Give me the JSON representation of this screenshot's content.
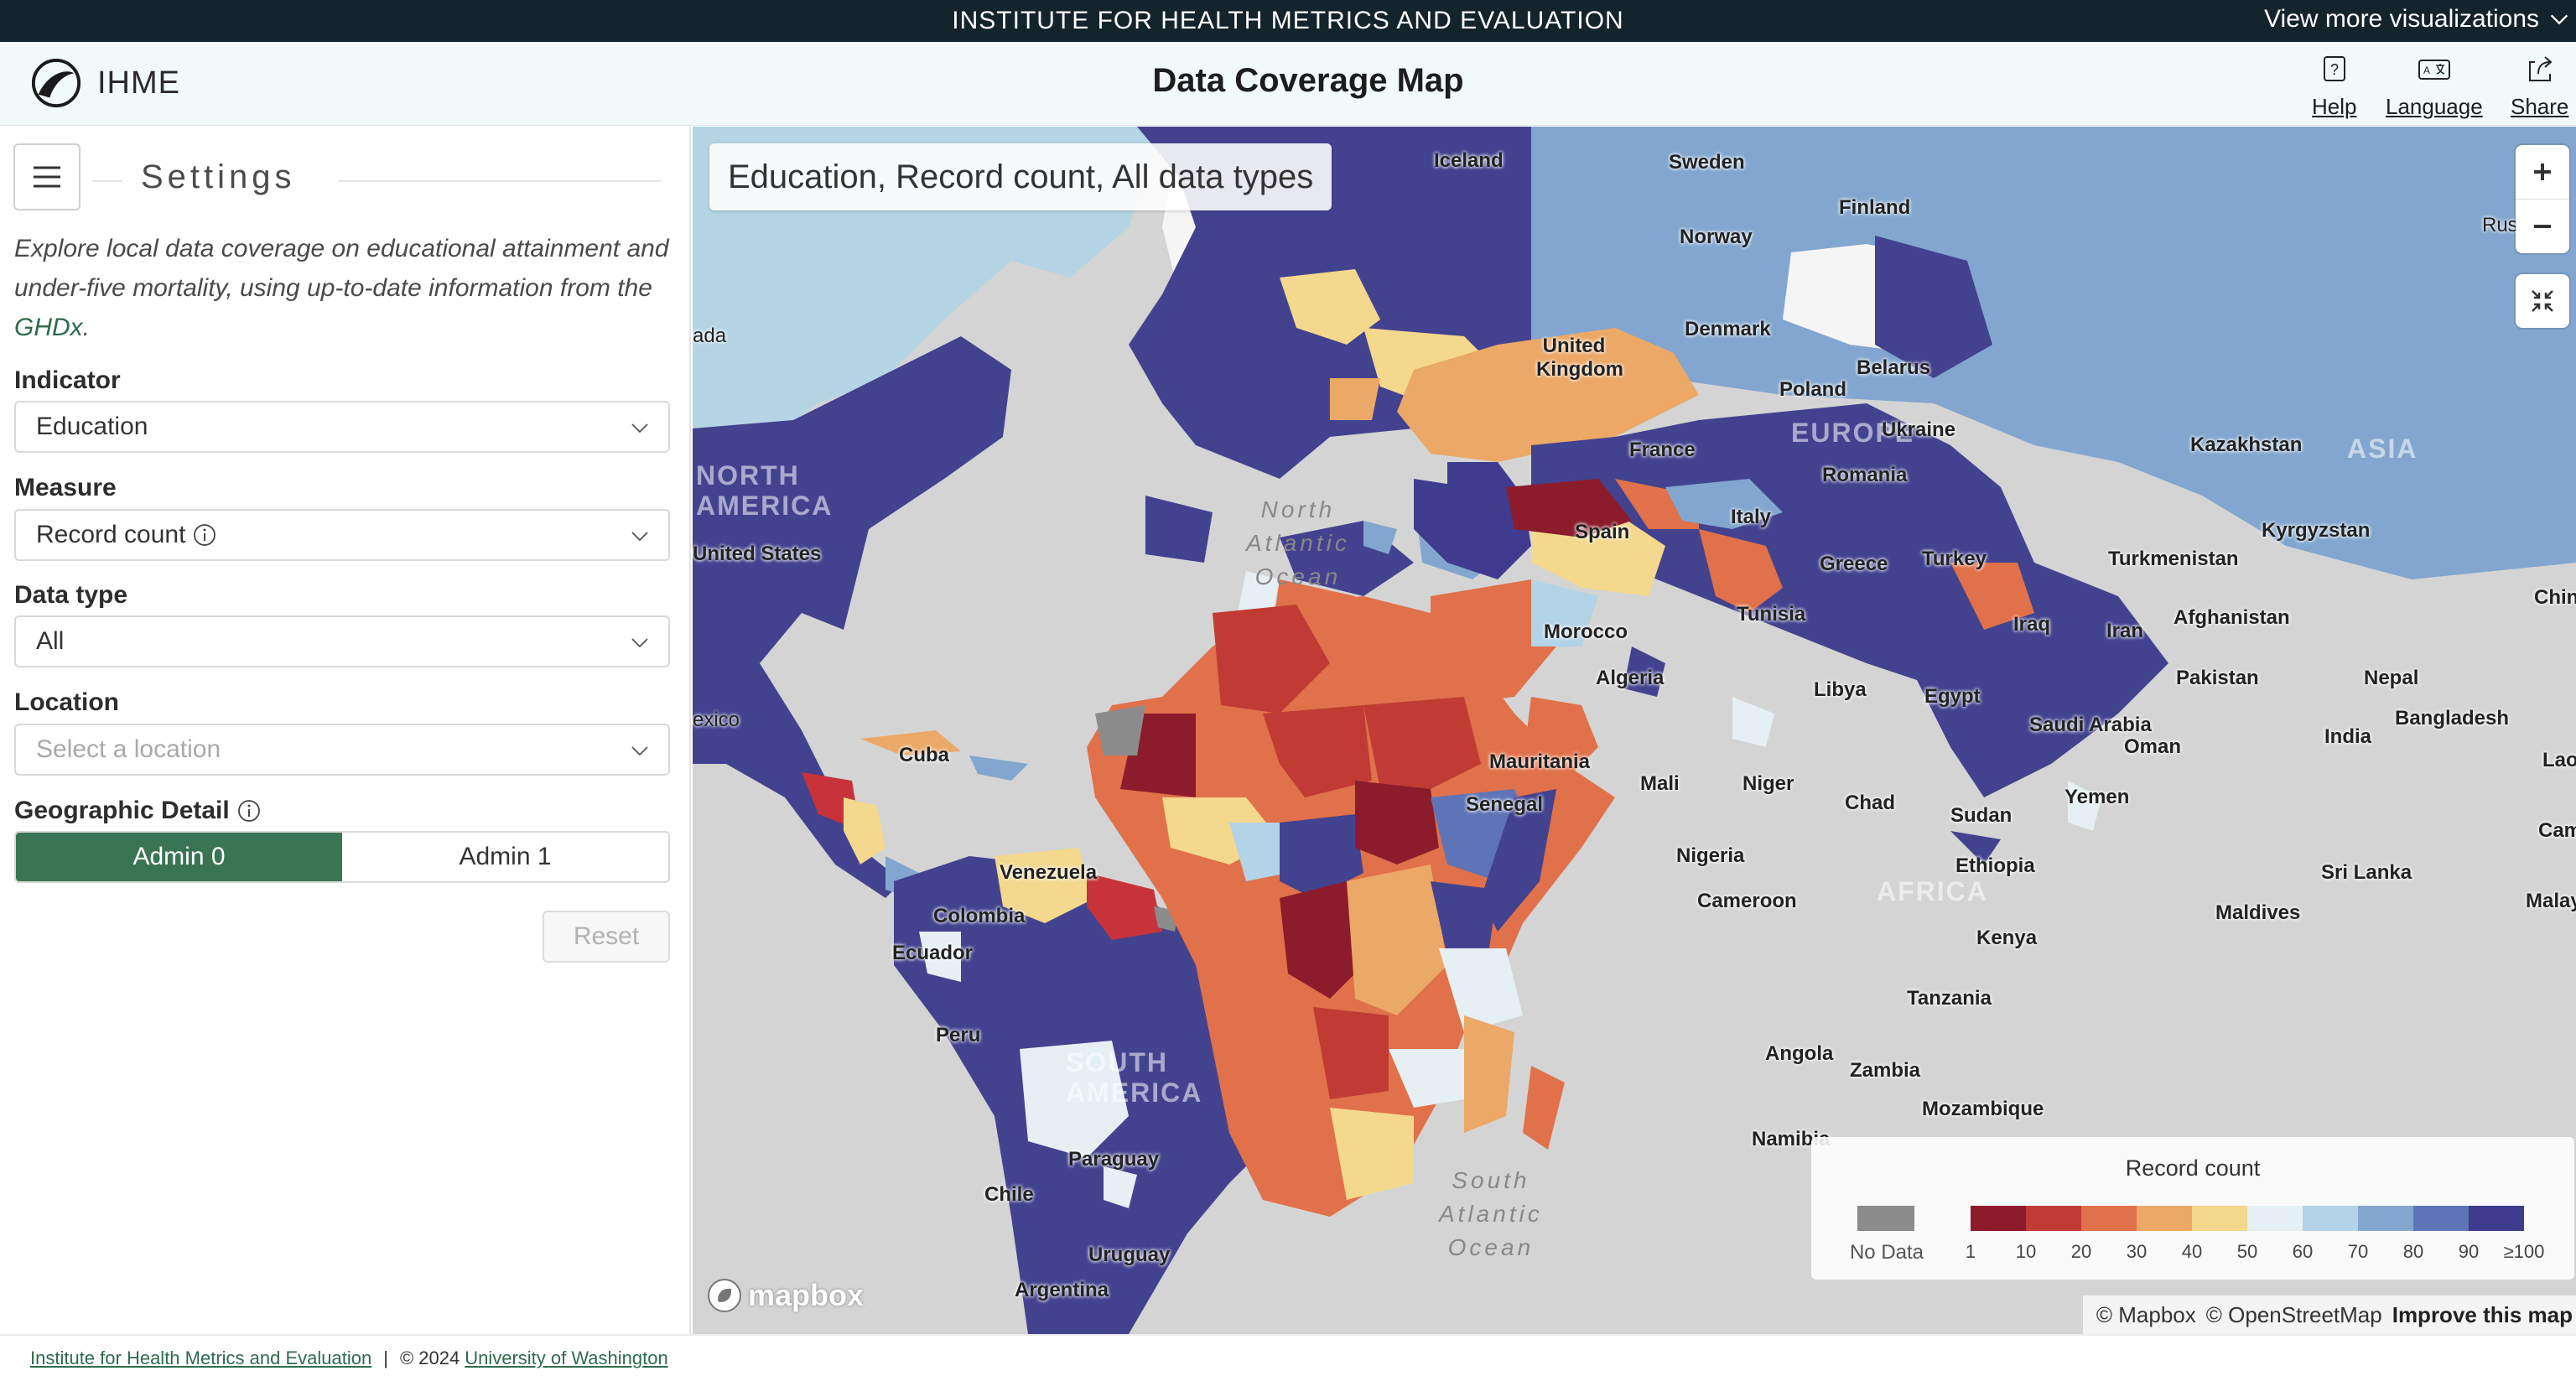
{
  "banner": {
    "title": "INSTITUTE FOR HEALTH METRICS AND EVALUATION",
    "more": "View more visualizations"
  },
  "header": {
    "logo_text": "IHME",
    "title": "Data Coverage Map",
    "help": "Help",
    "language": "Language",
    "share": "Share"
  },
  "sidebar": {
    "settings_title": "Settings",
    "intro_text": "Explore local data coverage on educational attainment and under-five mortality, using up-to-date information from the ",
    "intro_link": "GHDx",
    "intro_end": ".",
    "indicator": {
      "label": "Indicator",
      "value": "Education"
    },
    "measure": {
      "label": "Measure",
      "value": "Record count"
    },
    "data_type": {
      "label": "Data type",
      "value": "All"
    },
    "location": {
      "label": "Location",
      "placeholder": "Select a location"
    },
    "geo_detail": {
      "label": "Geographic Detail",
      "options": [
        "Admin 0",
        "Admin 1"
      ],
      "selected": "Admin 0"
    },
    "reset": "Reset"
  },
  "map": {
    "title": "Education, Record count, All data types",
    "attribution": [
      "© Mapbox",
      "© OpenStreetMap"
    ],
    "improve": "Improve this map",
    "mapbox_logo": "mapbox",
    "continents": [
      "NORTH\nAMERICA",
      "EUROPE",
      "ASIA",
      "AFRICA",
      "SOUTH\nAMERICA"
    ],
    "oceans": [
      "North\nAtlantic\nOcean",
      "South\nAtlantic\nOcean"
    ],
    "countries": [
      "Iceland",
      "Sweden",
      "Finland",
      "Norway",
      "United Kingdom",
      "Denmark",
      "Belarus",
      "Poland",
      "Ukraine",
      "France",
      "Romania",
      "Kazakhstan",
      "Spain",
      "Italy",
      "Kyrgyzstan",
      "Greece",
      "Turkey",
      "Turkmenistan",
      "United States",
      "Tunisia",
      "Afghanistan",
      "Morocco",
      "Iraq",
      "Iran",
      "Algeria",
      "Libya",
      "Egypt",
      "Pakistan",
      "Nepal",
      "Bangladesh",
      "India",
      "Saudi Arabia",
      "Oman",
      "Mauritania",
      "Mali",
      "Niger",
      "Chad",
      "Sudan",
      "Yemen",
      "Senegal",
      "Ethiopia",
      "Nigeria",
      "Cuba",
      "Venezuela",
      "Cameroon",
      "Colombia",
      "Sri Lanka",
      "Maldives",
      "Ecuador",
      "Kenya",
      "Tanzania",
      "Peru",
      "Angola",
      "Zambia",
      "Mozambique",
      "Paraguay",
      "Chile",
      "Uruguay",
      "Argentina",
      "Namibia",
      "Rus",
      "ada",
      "exico",
      "Lao",
      "Cam",
      "Malay",
      "Chin"
    ]
  },
  "legend": {
    "title": "Record count",
    "no_data": "No Data",
    "colors": [
      "#8c1c2b",
      "#c13b35",
      "#e0714a",
      "#eba867",
      "#f3d88d",
      "#e6eff3",
      "#b3d3e6",
      "#82a6cf",
      "#5f74b6",
      "#3f3b8e"
    ],
    "no_data_color": "#8c8c8c",
    "ticks": [
      "1",
      "10",
      "20",
      "30",
      "40",
      "50",
      "60",
      "70",
      "80",
      "90",
      "≥100"
    ]
  },
  "footer": {
    "ihme_link": "Institute for Health Metrics and Evaluation",
    "sep": "|",
    "copyright": "© 2024",
    "uw_link": "University of Washington"
  }
}
